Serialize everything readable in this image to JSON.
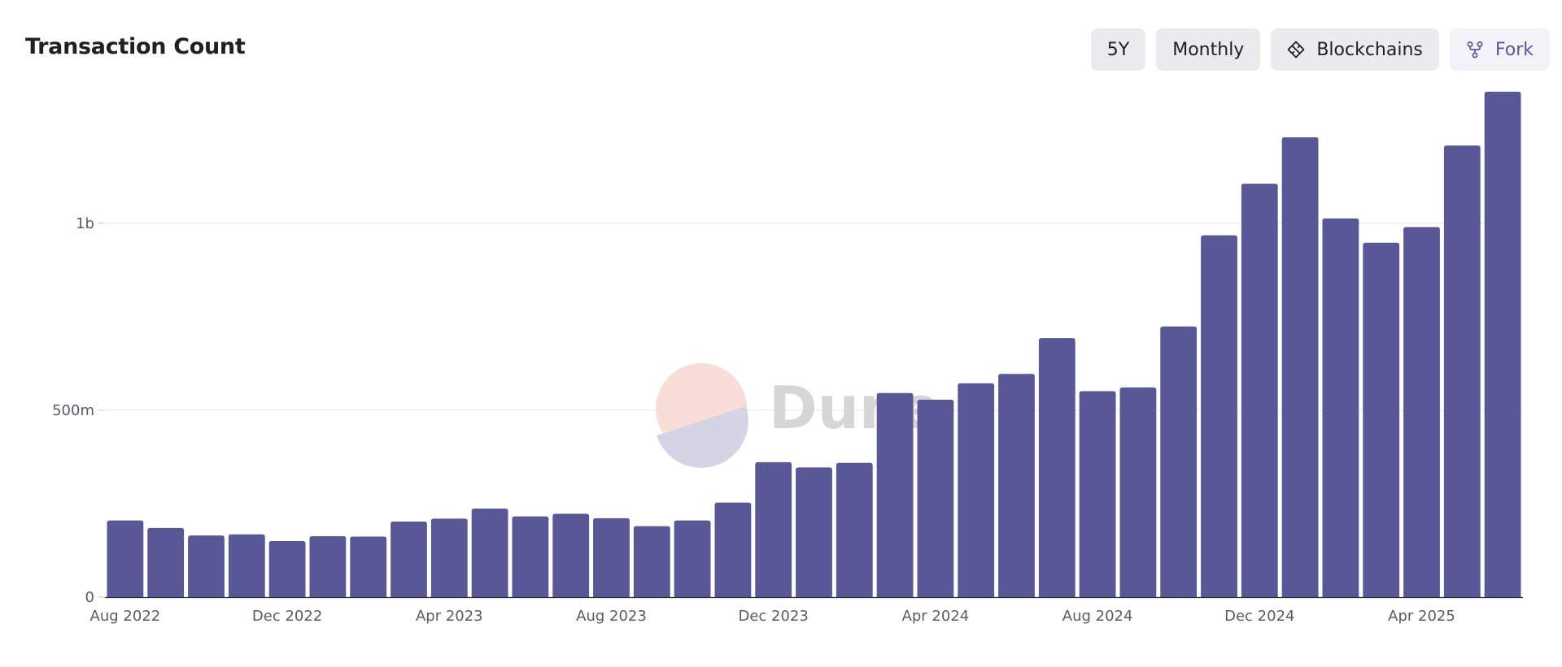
{
  "title": "Transaction Count",
  "toolbar": {
    "range_label": "5Y",
    "interval_label": "Monthly",
    "blockchains_label": "Blockchains",
    "fork_label": "Fork"
  },
  "watermark": {
    "text": "Dune"
  },
  "colors": {
    "bar": "#585896",
    "fork_text": "#595897",
    "button_bg": "#ebebed",
    "grid": "#e6e6ea"
  },
  "icons": {
    "blockchains": "diamond-icon",
    "fork": "fork-icon"
  },
  "chart_data": {
    "type": "bar",
    "title": "Transaction Count",
    "xlabel": "",
    "ylabel": "",
    "ylim": [
      0,
      1380000000
    ],
    "yticks": [
      {
        "value": 0,
        "label": "0"
      },
      {
        "value": 500000000,
        "label": "500m"
      },
      {
        "value": 1000000000,
        "label": "1b"
      }
    ],
    "xtick_labels": [
      "Aug 2022",
      "Dec 2022",
      "Apr 2023",
      "Aug 2023",
      "Dec 2023",
      "Apr 2024",
      "Aug 2024",
      "Dec 2024",
      "Apr 2025"
    ],
    "xtick_every": 4,
    "grid": true,
    "categories": [
      "Aug 2022",
      "Sep 2022",
      "Oct 2022",
      "Nov 2022",
      "Dec 2022",
      "Jan 2023",
      "Feb 2023",
      "Mar 2023",
      "Apr 2023",
      "May 2023",
      "Jun 2023",
      "Jul 2023",
      "Aug 2023",
      "Sep 2023",
      "Oct 2023",
      "Nov 2023",
      "Dec 2023",
      "Jan 2024",
      "Feb 2024",
      "Mar 2024",
      "Apr 2024",
      "May 2024",
      "Jun 2024",
      "Jul 2024",
      "Aug 2024",
      "Sep 2024",
      "Oct 2024",
      "Nov 2024",
      "Dec 2024",
      "Jan 2025",
      "Feb 2025",
      "Mar 2025",
      "Apr 2025",
      "May 2025",
      "Jun 2025"
    ],
    "values": [
      205000000,
      185000000,
      165000000,
      168000000,
      150000000,
      163000000,
      162000000,
      202000000,
      210000000,
      237000000,
      216000000,
      223000000,
      211000000,
      190000000,
      205000000,
      253000000,
      361000000,
      347000000,
      359000000,
      546000000,
      528000000,
      572000000,
      597000000,
      693000000,
      551000000,
      561000000,
      724000000,
      968000000,
      1106000000,
      1230000000,
      1013000000,
      948000000,
      990000000,
      1208000000,
      1352000000
    ]
  }
}
